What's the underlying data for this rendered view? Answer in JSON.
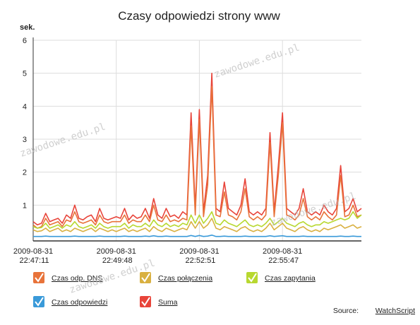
{
  "chart_data": {
    "type": "line",
    "title": "Czasy odpowiedzi strony www",
    "y_label": "sek.",
    "categories": [
      "2009-08-31 22:47:11",
      null,
      null,
      null,
      null,
      null,
      null,
      null,
      null,
      null,
      null,
      null,
      null,
      null,
      null,
      null,
      null,
      null,
      null,
      null,
      "2009-08-31 22:49:48",
      null,
      null,
      null,
      null,
      null,
      null,
      null,
      null,
      null,
      null,
      null,
      null,
      null,
      null,
      null,
      null,
      null,
      null,
      null,
      "2009-08-31 22:52:51",
      null,
      null,
      null,
      null,
      null,
      null,
      null,
      null,
      null,
      null,
      null,
      null,
      null,
      null,
      null,
      null,
      null,
      null,
      null,
      "2009-08-31 22:55:47",
      null,
      null,
      null,
      null,
      null,
      null,
      null,
      null,
      null,
      null,
      null,
      null,
      null,
      null,
      null,
      null,
      null,
      null,
      null
    ],
    "series": [
      {
        "name": "Czas odp. DNS",
        "color": "#e8733a",
        "values": [
          0.4,
          0.3,
          0.35,
          0.6,
          0.4,
          0.45,
          0.5,
          0.35,
          0.55,
          0.5,
          0.8,
          0.5,
          0.45,
          0.5,
          0.55,
          0.4,
          0.7,
          0.5,
          0.45,
          0.5,
          0.5,
          0.5,
          0.7,
          0.45,
          0.55,
          0.5,
          0.5,
          0.7,
          0.5,
          1.0,
          0.55,
          0.5,
          0.7,
          0.5,
          0.55,
          0.5,
          0.6,
          0.55,
          3.4,
          0.7,
          3.6,
          0.65,
          1.6,
          4.6,
          0.7,
          0.65,
          1.4,
          0.7,
          0.65,
          0.55,
          0.8,
          1.5,
          0.65,
          0.55,
          0.65,
          0.55,
          0.7,
          2.9,
          0.65,
          1.9,
          3.5,
          0.7,
          0.65,
          0.55,
          0.7,
          1.2,
          0.65,
          0.55,
          0.65,
          0.55,
          0.8,
          0.65,
          0.55,
          0.7,
          1.9,
          0.65,
          0.7,
          1.0,
          0.65,
          0.7
        ]
      },
      {
        "name": "Czas połączenia",
        "color": "#d9b040",
        "values": [
          0.25,
          0.2,
          0.22,
          0.3,
          0.2,
          0.25,
          0.3,
          0.2,
          0.25,
          0.2,
          0.3,
          0.25,
          0.2,
          0.25,
          0.3,
          0.2,
          0.3,
          0.25,
          0.2,
          0.25,
          0.2,
          0.25,
          0.3,
          0.2,
          0.25,
          0.2,
          0.25,
          0.3,
          0.2,
          0.35,
          0.25,
          0.2,
          0.3,
          0.25,
          0.2,
          0.25,
          0.3,
          0.25,
          0.5,
          0.3,
          0.5,
          0.3,
          0.4,
          0.6,
          0.3,
          0.25,
          0.35,
          0.3,
          0.25,
          0.2,
          0.3,
          0.35,
          0.25,
          0.2,
          0.25,
          0.2,
          0.3,
          0.45,
          0.25,
          0.35,
          0.45,
          0.3,
          0.25,
          0.2,
          0.3,
          0.35,
          0.25,
          0.2,
          0.25,
          0.2,
          0.3,
          0.25,
          0.3,
          0.35,
          0.4,
          0.3,
          0.35,
          0.4,
          0.3,
          0.35
        ]
      },
      {
        "name": "Czas zapytania",
        "color": "#b8d830",
        "values": [
          0.35,
          0.3,
          0.32,
          0.45,
          0.3,
          0.35,
          0.4,
          0.3,
          0.4,
          0.35,
          0.5,
          0.35,
          0.3,
          0.35,
          0.4,
          0.3,
          0.45,
          0.35,
          0.3,
          0.35,
          0.35,
          0.35,
          0.45,
          0.3,
          0.4,
          0.35,
          0.35,
          0.45,
          0.35,
          0.55,
          0.4,
          0.35,
          0.45,
          0.35,
          0.4,
          0.35,
          0.45,
          0.4,
          0.7,
          0.45,
          0.7,
          0.45,
          0.6,
          0.8,
          0.45,
          0.4,
          0.55,
          0.45,
          0.4,
          0.35,
          0.45,
          0.55,
          0.4,
          0.35,
          0.4,
          0.35,
          0.45,
          0.6,
          0.4,
          0.5,
          0.6,
          0.45,
          0.4,
          0.35,
          0.45,
          0.5,
          0.4,
          0.35,
          0.4,
          0.4,
          0.5,
          0.45,
          0.5,
          0.55,
          0.6,
          0.55,
          0.6,
          0.8,
          0.6,
          0.7
        ]
      },
      {
        "name": "Czas odpowiedzi",
        "color": "#3a9ad9",
        "values": [
          0.05,
          0.05,
          0.05,
          0.06,
          0.05,
          0.05,
          0.05,
          0.05,
          0.05,
          0.05,
          0.06,
          0.05,
          0.05,
          0.05,
          0.05,
          0.05,
          0.06,
          0.05,
          0.05,
          0.05,
          0.05,
          0.05,
          0.06,
          0.05,
          0.05,
          0.05,
          0.05,
          0.06,
          0.05,
          0.07,
          0.05,
          0.05,
          0.06,
          0.05,
          0.05,
          0.05,
          0.05,
          0.05,
          0.08,
          0.05,
          0.08,
          0.05,
          0.06,
          0.09,
          0.05,
          0.05,
          0.06,
          0.05,
          0.05,
          0.05,
          0.05,
          0.06,
          0.05,
          0.05,
          0.05,
          0.05,
          0.05,
          0.07,
          0.05,
          0.06,
          0.07,
          0.05,
          0.05,
          0.05,
          0.05,
          0.06,
          0.05,
          0.05,
          0.05,
          0.05,
          0.05,
          0.05,
          0.05,
          0.05,
          0.06,
          0.05,
          0.05,
          0.06,
          0.05,
          0.05
        ]
      },
      {
        "name": "Suma",
        "color": "#e8443a",
        "values": [
          0.5,
          0.4,
          0.45,
          0.75,
          0.5,
          0.55,
          0.6,
          0.45,
          0.7,
          0.6,
          1.0,
          0.6,
          0.55,
          0.65,
          0.7,
          0.5,
          0.9,
          0.6,
          0.55,
          0.6,
          0.65,
          0.6,
          0.9,
          0.55,
          0.7,
          0.6,
          0.65,
          0.9,
          0.6,
          1.2,
          0.7,
          0.6,
          0.9,
          0.65,
          0.7,
          0.6,
          0.8,
          0.7,
          3.8,
          0.9,
          3.9,
          0.8,
          1.9,
          5.0,
          0.9,
          0.8,
          1.7,
          0.9,
          0.8,
          0.7,
          1.0,
          1.8,
          0.8,
          0.7,
          0.8,
          0.7,
          0.9,
          3.2,
          0.8,
          2.2,
          3.8,
          0.9,
          0.8,
          0.7,
          0.9,
          1.5,
          0.8,
          0.7,
          0.8,
          0.7,
          1.0,
          0.8,
          0.7,
          0.9,
          2.2,
          0.8,
          0.9,
          1.2,
          0.8,
          0.9
        ]
      }
    ],
    "ylim": [
      0,
      6
    ],
    "yticks": [
      1,
      2,
      3,
      4,
      5,
      6
    ],
    "grid": true,
    "watermark": "zawodowe.edu.pl",
    "source_label": "Source:",
    "source_link": "WatchScript"
  }
}
